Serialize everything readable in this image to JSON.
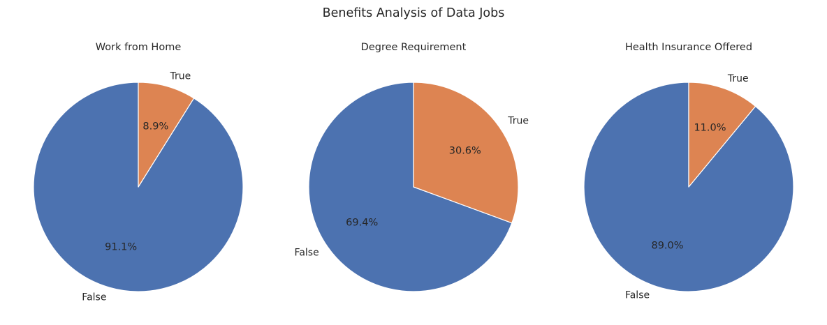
{
  "figure": {
    "suptitle": "Benefits Analysis of Data Jobs"
  },
  "colors": {
    "False": "#4c72b0",
    "True": "#dd8452",
    "edge": "#ffffff",
    "text": "#262626",
    "background": "#ffffff"
  },
  "chart_data": [
    {
      "type": "pie",
      "title": "Work from Home",
      "labels": [
        "False",
        "True"
      ],
      "values": [
        91.1,
        8.9
      ],
      "percent_labels": [
        "91.1%",
        "8.9%"
      ],
      "start_angle_deg": 90,
      "direction": "counterclockwise"
    },
    {
      "type": "pie",
      "title": "Degree Requirement",
      "labels": [
        "False",
        "True"
      ],
      "values": [
        69.4,
        30.6
      ],
      "percent_labels": [
        "69.4%",
        "30.6%"
      ],
      "start_angle_deg": 90,
      "direction": "counterclockwise"
    },
    {
      "type": "pie",
      "title": "Health Insurance Offered",
      "labels": [
        "False",
        "True"
      ],
      "values": [
        89.0,
        11.0
      ],
      "percent_labels": [
        "89.0%",
        "11.0%"
      ],
      "start_angle_deg": 90,
      "direction": "counterclockwise"
    }
  ]
}
